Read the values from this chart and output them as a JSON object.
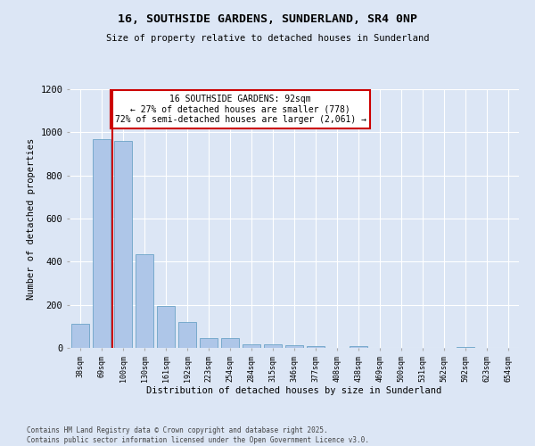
{
  "title_line1": "16, SOUTHSIDE GARDENS, SUNDERLAND, SR4 0NP",
  "title_line2": "Size of property relative to detached houses in Sunderland",
  "xlabel": "Distribution of detached houses by size in Sunderland",
  "ylabel": "Number of detached properties",
  "categories": [
    "38sqm",
    "69sqm",
    "100sqm",
    "130sqm",
    "161sqm",
    "192sqm",
    "223sqm",
    "254sqm",
    "284sqm",
    "315sqm",
    "346sqm",
    "377sqm",
    "408sqm",
    "438sqm",
    "469sqm",
    "500sqm",
    "531sqm",
    "562sqm",
    "592sqm",
    "623sqm",
    "654sqm"
  ],
  "values": [
    110,
    970,
    960,
    435,
    193,
    120,
    45,
    45,
    18,
    15,
    12,
    10,
    0,
    7,
    0,
    0,
    0,
    0,
    5,
    0,
    0
  ],
  "bar_color": "#aec6e8",
  "bar_edge_color": "#5a9abf",
  "vline_x_index": 2,
  "vline_color": "#cc0000",
  "annotation_text": "16 SOUTHSIDE GARDENS: 92sqm\n← 27% of detached houses are smaller (778)\n72% of semi-detached houses are larger (2,061) →",
  "annotation_box_color": "#ffffff",
  "annotation_box_edge_color": "#cc0000",
  "ylim": [
    0,
    1200
  ],
  "yticks": [
    0,
    200,
    400,
    600,
    800,
    1000,
    1200
  ],
  "background_color": "#dce6f5",
  "grid_color": "#ffffff",
  "footnote": "Contains HM Land Registry data © Crown copyright and database right 2025.\nContains public sector information licensed under the Open Government Licence v3.0."
}
